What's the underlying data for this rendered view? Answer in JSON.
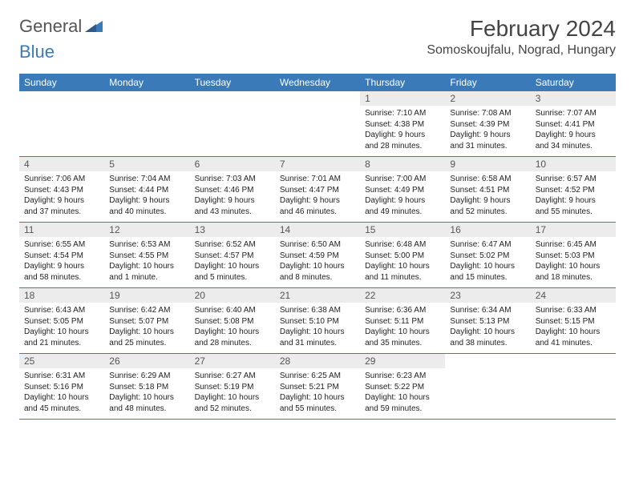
{
  "branding": {
    "logo_general": "General",
    "logo_blue": "Blue",
    "logo_color_general": "#555555",
    "logo_color_blue": "#3a7ab8"
  },
  "header": {
    "month_title": "February 2024",
    "location": "Somoskoujfalu, Nograd, Hungary"
  },
  "styling": {
    "header_row_bg": "#3a7ab8",
    "header_row_text": "#ffffff",
    "daynum_bg": "#ececec",
    "daynum_text": "#555555",
    "body_text": "#222222",
    "cell_border": "#3a7ab8",
    "page_bg": "#ffffff",
    "title_fontsize_pt": 21,
    "location_fontsize_pt": 12,
    "dayheader_fontsize_pt": 9,
    "daynum_fontsize_pt": 9,
    "detail_fontsize_pt": 7.5
  },
  "dayheaders": [
    "Sunday",
    "Monday",
    "Tuesday",
    "Wednesday",
    "Thursday",
    "Friday",
    "Saturday"
  ],
  "weeks": [
    [
      {
        "day": "",
        "sunrise": "",
        "sunset": "",
        "daylight1": "",
        "daylight2": "",
        "empty": true
      },
      {
        "day": "",
        "sunrise": "",
        "sunset": "",
        "daylight1": "",
        "daylight2": "",
        "empty": true
      },
      {
        "day": "",
        "sunrise": "",
        "sunset": "",
        "daylight1": "",
        "daylight2": "",
        "empty": true
      },
      {
        "day": "",
        "sunrise": "",
        "sunset": "",
        "daylight1": "",
        "daylight2": "",
        "empty": true
      },
      {
        "day": "1",
        "sunrise": "Sunrise: 7:10 AM",
        "sunset": "Sunset: 4:38 PM",
        "daylight1": "Daylight: 9 hours",
        "daylight2": "and 28 minutes."
      },
      {
        "day": "2",
        "sunrise": "Sunrise: 7:08 AM",
        "sunset": "Sunset: 4:39 PM",
        "daylight1": "Daylight: 9 hours",
        "daylight2": "and 31 minutes."
      },
      {
        "day": "3",
        "sunrise": "Sunrise: 7:07 AM",
        "sunset": "Sunset: 4:41 PM",
        "daylight1": "Daylight: 9 hours",
        "daylight2": "and 34 minutes."
      }
    ],
    [
      {
        "day": "4",
        "sunrise": "Sunrise: 7:06 AM",
        "sunset": "Sunset: 4:43 PM",
        "daylight1": "Daylight: 9 hours",
        "daylight2": "and 37 minutes."
      },
      {
        "day": "5",
        "sunrise": "Sunrise: 7:04 AM",
        "sunset": "Sunset: 4:44 PM",
        "daylight1": "Daylight: 9 hours",
        "daylight2": "and 40 minutes."
      },
      {
        "day": "6",
        "sunrise": "Sunrise: 7:03 AM",
        "sunset": "Sunset: 4:46 PM",
        "daylight1": "Daylight: 9 hours",
        "daylight2": "and 43 minutes."
      },
      {
        "day": "7",
        "sunrise": "Sunrise: 7:01 AM",
        "sunset": "Sunset: 4:47 PM",
        "daylight1": "Daylight: 9 hours",
        "daylight2": "and 46 minutes."
      },
      {
        "day": "8",
        "sunrise": "Sunrise: 7:00 AM",
        "sunset": "Sunset: 4:49 PM",
        "daylight1": "Daylight: 9 hours",
        "daylight2": "and 49 minutes."
      },
      {
        "day": "9",
        "sunrise": "Sunrise: 6:58 AM",
        "sunset": "Sunset: 4:51 PM",
        "daylight1": "Daylight: 9 hours",
        "daylight2": "and 52 minutes."
      },
      {
        "day": "10",
        "sunrise": "Sunrise: 6:57 AM",
        "sunset": "Sunset: 4:52 PM",
        "daylight1": "Daylight: 9 hours",
        "daylight2": "and 55 minutes."
      }
    ],
    [
      {
        "day": "11",
        "sunrise": "Sunrise: 6:55 AM",
        "sunset": "Sunset: 4:54 PM",
        "daylight1": "Daylight: 9 hours",
        "daylight2": "and 58 minutes."
      },
      {
        "day": "12",
        "sunrise": "Sunrise: 6:53 AM",
        "sunset": "Sunset: 4:55 PM",
        "daylight1": "Daylight: 10 hours",
        "daylight2": "and 1 minute."
      },
      {
        "day": "13",
        "sunrise": "Sunrise: 6:52 AM",
        "sunset": "Sunset: 4:57 PM",
        "daylight1": "Daylight: 10 hours",
        "daylight2": "and 5 minutes."
      },
      {
        "day": "14",
        "sunrise": "Sunrise: 6:50 AM",
        "sunset": "Sunset: 4:59 PM",
        "daylight1": "Daylight: 10 hours",
        "daylight2": "and 8 minutes."
      },
      {
        "day": "15",
        "sunrise": "Sunrise: 6:48 AM",
        "sunset": "Sunset: 5:00 PM",
        "daylight1": "Daylight: 10 hours",
        "daylight2": "and 11 minutes."
      },
      {
        "day": "16",
        "sunrise": "Sunrise: 6:47 AM",
        "sunset": "Sunset: 5:02 PM",
        "daylight1": "Daylight: 10 hours",
        "daylight2": "and 15 minutes."
      },
      {
        "day": "17",
        "sunrise": "Sunrise: 6:45 AM",
        "sunset": "Sunset: 5:03 PM",
        "daylight1": "Daylight: 10 hours",
        "daylight2": "and 18 minutes."
      }
    ],
    [
      {
        "day": "18",
        "sunrise": "Sunrise: 6:43 AM",
        "sunset": "Sunset: 5:05 PM",
        "daylight1": "Daylight: 10 hours",
        "daylight2": "and 21 minutes."
      },
      {
        "day": "19",
        "sunrise": "Sunrise: 6:42 AM",
        "sunset": "Sunset: 5:07 PM",
        "daylight1": "Daylight: 10 hours",
        "daylight2": "and 25 minutes."
      },
      {
        "day": "20",
        "sunrise": "Sunrise: 6:40 AM",
        "sunset": "Sunset: 5:08 PM",
        "daylight1": "Daylight: 10 hours",
        "daylight2": "and 28 minutes."
      },
      {
        "day": "21",
        "sunrise": "Sunrise: 6:38 AM",
        "sunset": "Sunset: 5:10 PM",
        "daylight1": "Daylight: 10 hours",
        "daylight2": "and 31 minutes."
      },
      {
        "day": "22",
        "sunrise": "Sunrise: 6:36 AM",
        "sunset": "Sunset: 5:11 PM",
        "daylight1": "Daylight: 10 hours",
        "daylight2": "and 35 minutes."
      },
      {
        "day": "23",
        "sunrise": "Sunrise: 6:34 AM",
        "sunset": "Sunset: 5:13 PM",
        "daylight1": "Daylight: 10 hours",
        "daylight2": "and 38 minutes."
      },
      {
        "day": "24",
        "sunrise": "Sunrise: 6:33 AM",
        "sunset": "Sunset: 5:15 PM",
        "daylight1": "Daylight: 10 hours",
        "daylight2": "and 41 minutes."
      }
    ],
    [
      {
        "day": "25",
        "sunrise": "Sunrise: 6:31 AM",
        "sunset": "Sunset: 5:16 PM",
        "daylight1": "Daylight: 10 hours",
        "daylight2": "and 45 minutes."
      },
      {
        "day": "26",
        "sunrise": "Sunrise: 6:29 AM",
        "sunset": "Sunset: 5:18 PM",
        "daylight1": "Daylight: 10 hours",
        "daylight2": "and 48 minutes."
      },
      {
        "day": "27",
        "sunrise": "Sunrise: 6:27 AM",
        "sunset": "Sunset: 5:19 PM",
        "daylight1": "Daylight: 10 hours",
        "daylight2": "and 52 minutes."
      },
      {
        "day": "28",
        "sunrise": "Sunrise: 6:25 AM",
        "sunset": "Sunset: 5:21 PM",
        "daylight1": "Daylight: 10 hours",
        "daylight2": "and 55 minutes."
      },
      {
        "day": "29",
        "sunrise": "Sunrise: 6:23 AM",
        "sunset": "Sunset: 5:22 PM",
        "daylight1": "Daylight: 10 hours",
        "daylight2": "and 59 minutes."
      },
      {
        "day": "",
        "sunrise": "",
        "sunset": "",
        "daylight1": "",
        "daylight2": "",
        "empty": true
      },
      {
        "day": "",
        "sunrise": "",
        "sunset": "",
        "daylight1": "",
        "daylight2": "",
        "empty": true
      }
    ]
  ]
}
